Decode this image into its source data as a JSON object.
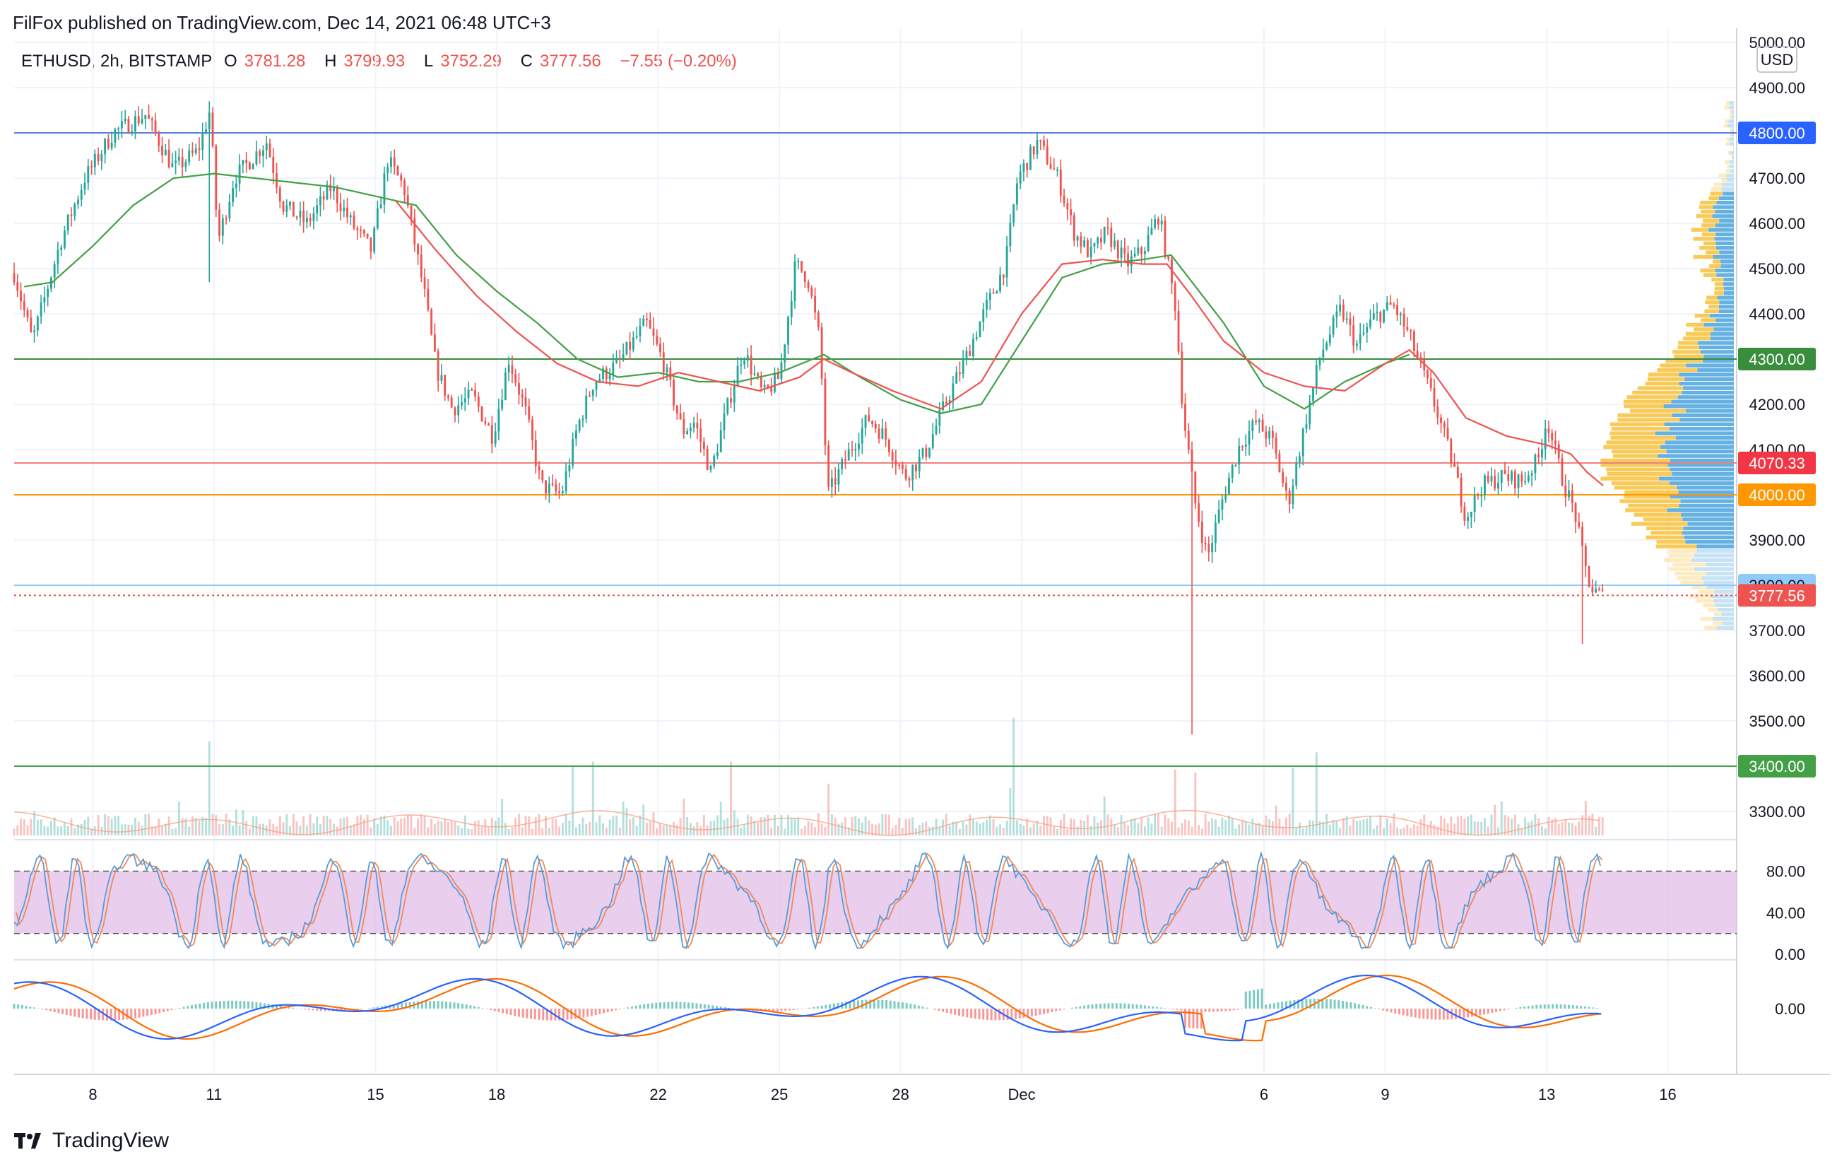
{
  "header": {
    "published": "FilFox published on TradingView.com, Dec 14, 2021 06:48 UTC+3"
  },
  "ohlc": {
    "symbol": "ETHUSD, 2h, BITSTAMP",
    "o_label": "O",
    "o": "3781.28",
    "h_label": "H",
    "h": "3799.93",
    "l_label": "L",
    "l": "3752.29",
    "c_label": "C",
    "c": "3777.56",
    "change": "−7.55 (−0.20%)"
  },
  "footer": {
    "brand": "TradingView"
  },
  "colors": {
    "up": "#26a69a",
    "down": "#ef5350",
    "ma_red": "#ef5350",
    "ma_green": "#43a047",
    "stoch_band": "#e1bee7",
    "stoch_k": "#5b9bd5",
    "stoch_d": "#ef8a5a",
    "macd_line": "#2962ff",
    "signal_line": "#ff6d00",
    "vp_up": "#5dade2",
    "vp_down": "#f9c74f"
  },
  "chart_data": [
    {
      "type": "candlestick",
      "currency": "USD",
      "ylim": [
        3250,
        5000
      ],
      "y_ticks": [
        "5000.00",
        "4900.00",
        "4800.00",
        "4700.00",
        "4600.00",
        "4500.00",
        "4400.00",
        "4300.00",
        "4200.00",
        "4100.00",
        "4000.00",
        "3900.00",
        "3800.00",
        "3700.00",
        "3600.00",
        "3500.00",
        "3400.00",
        "3300.00"
      ],
      "x_ticks": [
        {
          "label": "8",
          "day": 8
        },
        {
          "label": "11",
          "day": 11
        },
        {
          "label": "15",
          "day": 15
        },
        {
          "label": "18",
          "day": 18
        },
        {
          "label": "22",
          "day": 22
        },
        {
          "label": "25",
          "day": 25
        },
        {
          "label": "28",
          "day": 28
        },
        {
          "label": "Dec",
          "day": 31
        },
        {
          "label": "6",
          "day": 37
        },
        {
          "label": "9",
          "day": 40
        },
        {
          "label": "13",
          "day": 44
        },
        {
          "label": "16",
          "day": 47
        }
      ],
      "xlim_days": [
        6.05,
        48.6
      ],
      "path_points": [
        [
          6.05,
          4490
        ],
        [
          6.5,
          4340
        ],
        [
          7.2,
          4560
        ],
        [
          7.8,
          4700
        ],
        [
          8.5,
          4800
        ],
        [
          9.3,
          4840
        ],
        [
          10.0,
          4720
        ],
        [
          10.6,
          4760
        ],
        [
          10.9,
          4850
        ],
        [
          11.1,
          4560
        ],
        [
          11.5,
          4700
        ],
        [
          12.3,
          4780
        ],
        [
          12.7,
          4640
        ],
        [
          13.3,
          4600
        ],
        [
          13.9,
          4680
        ],
        [
          14.4,
          4600
        ],
        [
          14.9,
          4540
        ],
        [
          15.3,
          4740
        ],
        [
          15.7,
          4680
        ],
        [
          16.2,
          4450
        ],
        [
          16.5,
          4280
        ],
        [
          16.9,
          4190
        ],
        [
          17.4,
          4220
        ],
        [
          17.9,
          4130
        ],
        [
          18.3,
          4300
        ],
        [
          18.7,
          4190
        ],
        [
          19.1,
          4020
        ],
        [
          19.6,
          4000
        ],
        [
          20.0,
          4150
        ],
        [
          20.4,
          4250
        ],
        [
          21.0,
          4290
        ],
        [
          21.7,
          4380
        ],
        [
          22.1,
          4300
        ],
        [
          22.6,
          4140
        ],
        [
          22.9,
          4160
        ],
        [
          23.3,
          4050
        ],
        [
          23.7,
          4190
        ],
        [
          24.1,
          4320
        ],
        [
          24.6,
          4220
        ],
        [
          25.0,
          4260
        ],
        [
          25.4,
          4510
        ],
        [
          25.7,
          4480
        ],
        [
          26.0,
          4340
        ],
        [
          26.2,
          4000
        ],
        [
          26.7,
          4090
        ],
        [
          27.2,
          4170
        ],
        [
          27.6,
          4130
        ],
        [
          28.1,
          4040
        ],
        [
          28.6,
          4090
        ],
        [
          29.1,
          4200
        ],
        [
          29.6,
          4300
        ],
        [
          30.1,
          4410
        ],
        [
          30.6,
          4510
        ],
        [
          30.9,
          4700
        ],
        [
          31.4,
          4780
        ],
        [
          31.9,
          4700
        ],
        [
          32.3,
          4580
        ],
        [
          32.7,
          4530
        ],
        [
          33.1,
          4580
        ],
        [
          33.6,
          4510
        ],
        [
          34.0,
          4540
        ],
        [
          34.4,
          4620
        ],
        [
          34.8,
          4420
        ],
        [
          35.0,
          4180
        ],
        [
          35.3,
          3980
        ],
        [
          35.6,
          3860
        ],
        [
          36.0,
          4000
        ],
        [
          36.4,
          4110
        ],
        [
          36.8,
          4160
        ],
        [
          37.2,
          4120
        ],
        [
          37.6,
          3980
        ],
        [
          38.0,
          4150
        ],
        [
          38.4,
          4310
        ],
        [
          38.9,
          4410
        ],
        [
          39.3,
          4330
        ],
        [
          39.7,
          4390
        ],
        [
          40.2,
          4420
        ],
        [
          40.6,
          4350
        ],
        [
          40.9,
          4280
        ],
        [
          41.3,
          4180
        ],
        [
          41.7,
          4060
        ],
        [
          42.0,
          3950
        ],
        [
          42.4,
          4020
        ],
        [
          42.9,
          4040
        ],
        [
          43.4,
          4030
        ],
        [
          43.8,
          4080
        ],
        [
          44.0,
          4170
        ],
        [
          44.4,
          4030
        ],
        [
          44.7,
          3960
        ],
        [
          44.9,
          3860
        ],
        [
          45.1,
          3790
        ],
        [
          45.4,
          3775
        ]
      ],
      "spikes": [
        [
          10.9,
          4470,
          4870
        ],
        [
          35.2,
          3470,
          3990
        ],
        [
          44.9,
          3670,
          3790
        ]
      ],
      "moving_average_red": [
        [
          15.5,
          4650
        ],
        [
          16.5,
          4540
        ],
        [
          17.5,
          4440
        ],
        [
          18.5,
          4360
        ],
        [
          19.5,
          4290
        ],
        [
          20.5,
          4250
        ],
        [
          21.5,
          4240
        ],
        [
          22.5,
          4270
        ],
        [
          23.5,
          4250
        ],
        [
          24.5,
          4230
        ],
        [
          25.5,
          4260
        ],
        [
          26.1,
          4300
        ],
        [
          26.8,
          4270
        ],
        [
          27.8,
          4230
        ],
        [
          29.0,
          4190
        ],
        [
          30.0,
          4250
        ],
        [
          31.0,
          4400
        ],
        [
          32.0,
          4510
        ],
        [
          33.0,
          4520
        ],
        [
          34.0,
          4510
        ],
        [
          34.6,
          4510
        ],
        [
          35.2,
          4440
        ],
        [
          36.0,
          4340
        ],
        [
          37.0,
          4270
        ],
        [
          38.0,
          4240
        ],
        [
          39.0,
          4230
        ],
        [
          40.0,
          4290
        ],
        [
          40.6,
          4320
        ],
        [
          41.2,
          4270
        ],
        [
          42.0,
          4170
        ],
        [
          43.0,
          4130
        ],
        [
          44.0,
          4110
        ],
        [
          44.6,
          4090
        ],
        [
          45.0,
          4050
        ],
        [
          45.4,
          4020
        ]
      ],
      "moving_average_green": [
        [
          6.3,
          4460
        ],
        [
          7.0,
          4470
        ],
        [
          8.0,
          4550
        ],
        [
          9.0,
          4640
        ],
        [
          10.0,
          4700
        ],
        [
          11.0,
          4710
        ],
        [
          12.0,
          4700
        ],
        [
          13.0,
          4690
        ],
        [
          14.0,
          4680
        ],
        [
          15.0,
          4660
        ],
        [
          16.0,
          4640
        ],
        [
          17.0,
          4530
        ],
        [
          18.0,
          4450
        ],
        [
          19.0,
          4380
        ],
        [
          20.0,
          4300
        ],
        [
          21.0,
          4260
        ],
        [
          22.0,
          4270
        ],
        [
          23.0,
          4250
        ],
        [
          24.0,
          4250
        ],
        [
          25.0,
          4270
        ],
        [
          26.1,
          4310
        ],
        [
          27.0,
          4260
        ],
        [
          28.0,
          4210
        ],
        [
          29.0,
          4180
        ],
        [
          30.0,
          4200
        ],
        [
          31.0,
          4340
        ],
        [
          32.0,
          4480
        ],
        [
          33.0,
          4510
        ],
        [
          34.0,
          4520
        ],
        [
          34.7,
          4530
        ],
        [
          36.0,
          4380
        ],
        [
          37.0,
          4240
        ],
        [
          38.0,
          4190
        ],
        [
          39.0,
          4250
        ],
        [
          40.0,
          4290
        ],
        [
          40.6,
          4310
        ]
      ],
      "horizontal_levels": [
        {
          "value": 4800,
          "label": "4800.00",
          "color": "#2962ff",
          "line": "#5b7fd8"
        },
        {
          "value": 4300,
          "label": "4300.00",
          "color": "#388e3c",
          "line": "#388e3c"
        },
        {
          "value": 4070.33,
          "label": "4070.33",
          "color": "#f23645",
          "line": "#f08080"
        },
        {
          "value": 4000,
          "label": "4000.00",
          "color": "#ff9800",
          "line": "#ff9800"
        },
        {
          "value": 3800,
          "label": "3800.00",
          "color": "#90caf9",
          "line": "#90caf9"
        },
        {
          "value": 3777.56,
          "label": "3777.56",
          "color": "#ef5350",
          "line": "#ef5350",
          "dotted": true
        },
        {
          "value": 3400,
          "label": "3400.00",
          "color": "#43a047",
          "line": "#43a047"
        }
      ]
    },
    {
      "type": "bar",
      "name": "volume",
      "ylim": [
        0,
        100
      ],
      "spikes": [
        [
          10.9,
          60
        ],
        [
          20.4,
          47
        ],
        [
          19.9,
          44
        ],
        [
          23.8,
          47
        ],
        [
          26.2,
          33
        ],
        [
          30.8,
          75
        ],
        [
          35.3,
          40
        ],
        [
          34.8,
          42
        ],
        [
          38.3,
          53
        ],
        [
          37.7,
          43
        ],
        [
          45.0,
          22
        ]
      ]
    },
    {
      "type": "line",
      "name": "stochastic",
      "ylim": [
        0,
        100
      ],
      "y_ticks": [
        "80.00",
        "40.00",
        "0.00"
      ],
      "bands": [
        20,
        80
      ]
    },
    {
      "type": "line",
      "name": "macd",
      "y_ticks": [
        "0.00"
      ]
    }
  ]
}
